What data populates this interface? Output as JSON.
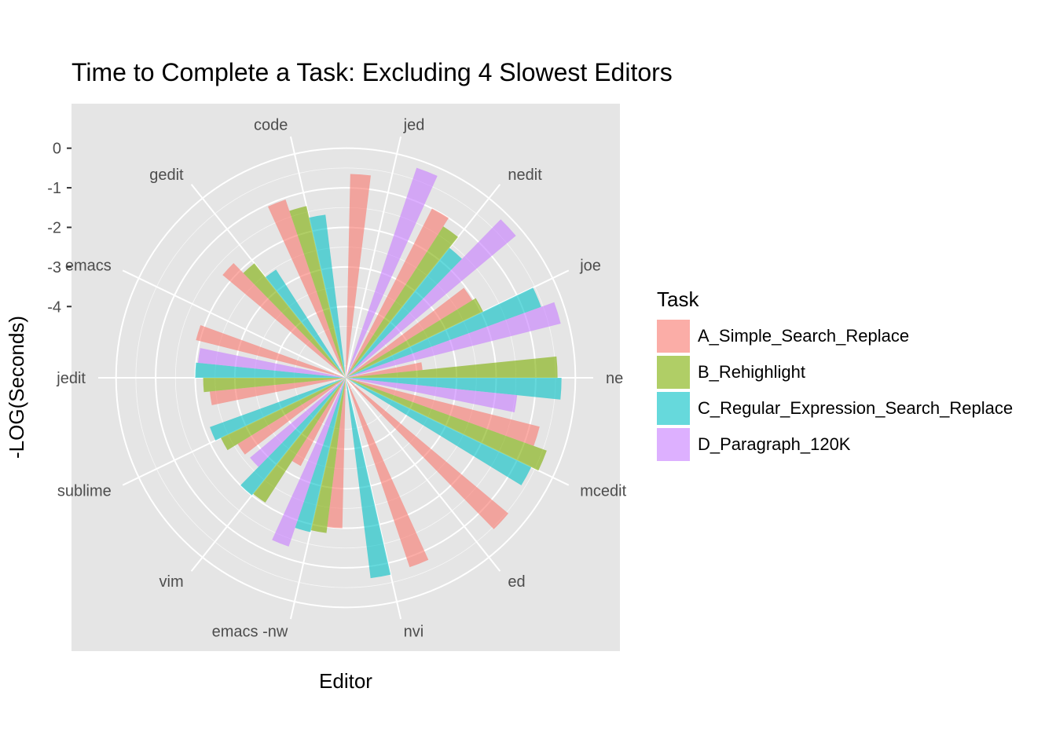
{
  "chart_data": {
    "type": "bar",
    "coord": "polar",
    "title": "Time to Complete a Task: Excluding 4 Slowest Editors",
    "xlabel": "Editor",
    "ylabel": "-LOG(Seconds)",
    "ylim": [
      -5.8,
      0.45
    ],
    "y_ticks": [
      "0",
      "-1",
      "-2",
      "-3",
      "-4"
    ],
    "y_tick_values": [
      0,
      -1,
      -2,
      -3,
      -4
    ],
    "categories": [
      "jed",
      "nedit",
      "joe",
      "ne",
      "mcedit",
      "ed",
      "nvi",
      "emacs -nw",
      "vim",
      "sublime",
      "jedit",
      "emacs",
      "gedit",
      "code"
    ],
    "legend_title": "Task",
    "series": [
      {
        "name": "A_Simple_Search_Replace",
        "color": "#F8766D",
        "values": [
          -0.65,
          -1.0,
          -2.05,
          -3.85,
          -0.75,
          -0.45,
          -0.75,
          -2.0,
          -3.3,
          -2.6,
          -2.35,
          -1.9,
          -1.75,
          -1.05
        ]
      },
      {
        "name": "B_Rehighlight",
        "color": "#7CAE00",
        "values": [
          null,
          -1.25,
          -1.95,
          -0.45,
          -0.4,
          null,
          null,
          -1.85,
          -2.05,
          -2.3,
          -2.2,
          null,
          -2.1,
          -1.35
        ]
      },
      {
        "name": "C_Regular_Expression_Search_Replace",
        "color": "#00BFC4",
        "values": [
          null,
          -1.6,
          -0.55,
          -0.35,
          -0.6,
          null,
          -0.7,
          -1.8,
          -2.0,
          -2.15,
          -2.0,
          null,
          -2.55,
          -1.65
        ]
      },
      {
        "name": "D_Paragraph_120K",
        "color": "#C77CFF",
        "values": [
          -0.2,
          -0.2,
          -0.2,
          -1.45,
          null,
          null,
          null,
          -1.3,
          -2.65,
          null,
          -2.05,
          null,
          null,
          null
        ]
      }
    ]
  }
}
